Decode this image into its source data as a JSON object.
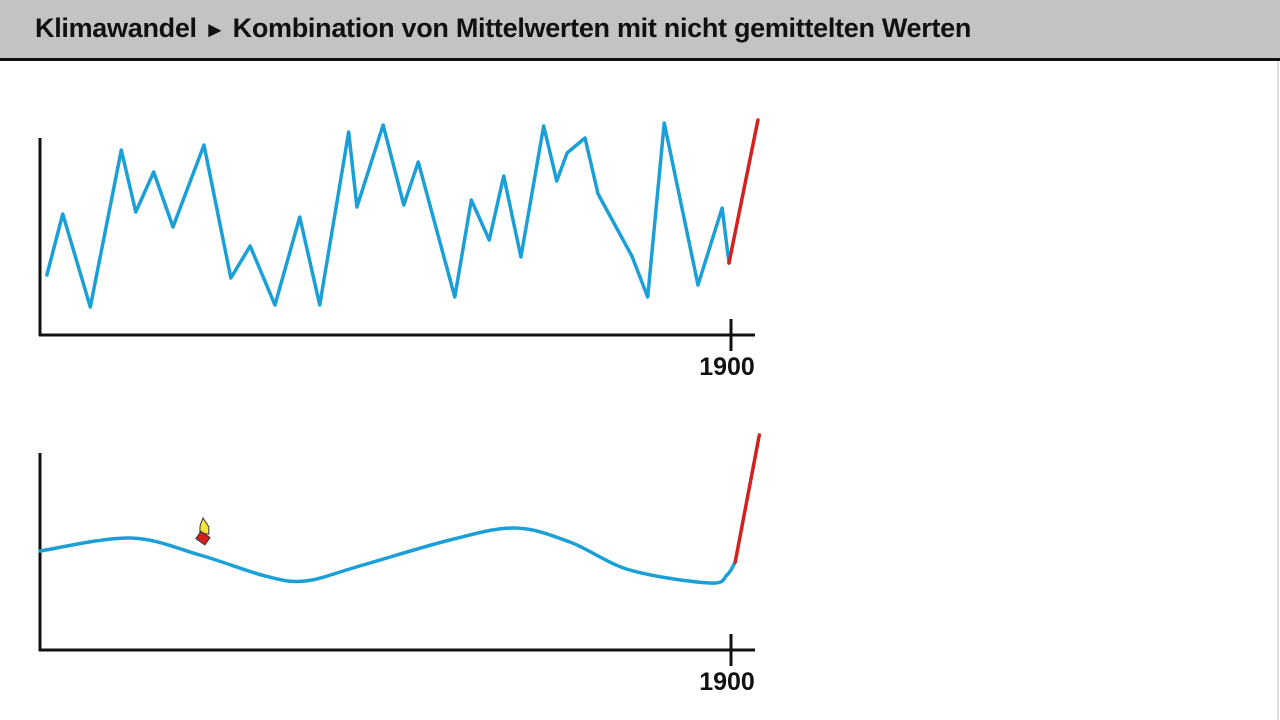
{
  "header": {
    "topic": "Klimawandel",
    "separator": "►",
    "subtitle": "Kombination von Mittelwerten mit nicht gemittelten Werten"
  },
  "colors": {
    "measured_line": "#1a9fd6",
    "recent_line": "#d42020",
    "axis": "#111111",
    "header_bg": "#c3c3c3"
  },
  "cursor_icon": "hand-pointer-icon",
  "chart_data": [
    {
      "type": "line",
      "xticks": [
        {
          "x": 100,
          "label": "1900"
        }
      ],
      "series": [
        {
          "color": "#1a9fd6",
          "points": [
            [
              1.0,
              30
            ],
            [
              3.3,
              60.5
            ],
            [
              7.3,
              14
            ],
            [
              11.8,
              92.5
            ],
            [
              13.9,
              61.5
            ],
            [
              16.5,
              81.5
            ],
            [
              19.3,
              54
            ],
            [
              23.8,
              95
            ],
            [
              27.7,
              28.5
            ],
            [
              30.5,
              44.5
            ],
            [
              34.1,
              15
            ],
            [
              37.7,
              59
            ],
            [
              40.6,
              15
            ],
            [
              44.8,
              101.5
            ],
            [
              46.0,
              64
            ],
            [
              49.8,
              105
            ],
            [
              52.8,
              65
            ],
            [
              54.9,
              86.5
            ],
            [
              60.2,
              19
            ],
            [
              62.6,
              67.5
            ],
            [
              65.2,
              47.5
            ],
            [
              67.3,
              79.5
            ],
            [
              69.8,
              39
            ],
            [
              73.1,
              104.5
            ],
            [
              75.0,
              77
            ],
            [
              76.5,
              91
            ],
            [
              79.1,
              98.5
            ],
            [
              81.0,
              70.5
            ],
            [
              85.9,
              39.5
            ],
            [
              88.2,
              19
            ],
            [
              90.6,
              106
            ],
            [
              95.5,
              25
            ],
            [
              99.0,
              63.5
            ],
            [
              100,
              36
            ]
          ]
        },
        {
          "color": "#d42020",
          "points": [
            [
              100,
              36
            ],
            [
              104.2,
              107.5
            ]
          ]
        }
      ]
    },
    {
      "type": "line",
      "xticks": [
        {
          "x": 100,
          "label": "1900"
        }
      ],
      "series": [
        {
          "color": "#1a9fd6",
          "smooth": true,
          "points": [
            [
              0,
              49.5
            ],
            [
              13.1,
              56
            ],
            [
              23.2,
              47.5
            ],
            [
              32.7,
              37
            ],
            [
              38.5,
              34.5
            ],
            [
              46.4,
              42
            ],
            [
              59.5,
              55
            ],
            [
              68.9,
              61
            ],
            [
              76.9,
              54
            ],
            [
              85.6,
              40
            ],
            [
              97.2,
              33.5
            ],
            [
              99.7,
              37.5
            ],
            [
              100.9,
              44
            ]
          ]
        },
        {
          "color": "#d42020",
          "points": [
            [
              100.9,
              44
            ],
            [
              104.4,
              107.5
            ]
          ]
        }
      ]
    }
  ]
}
